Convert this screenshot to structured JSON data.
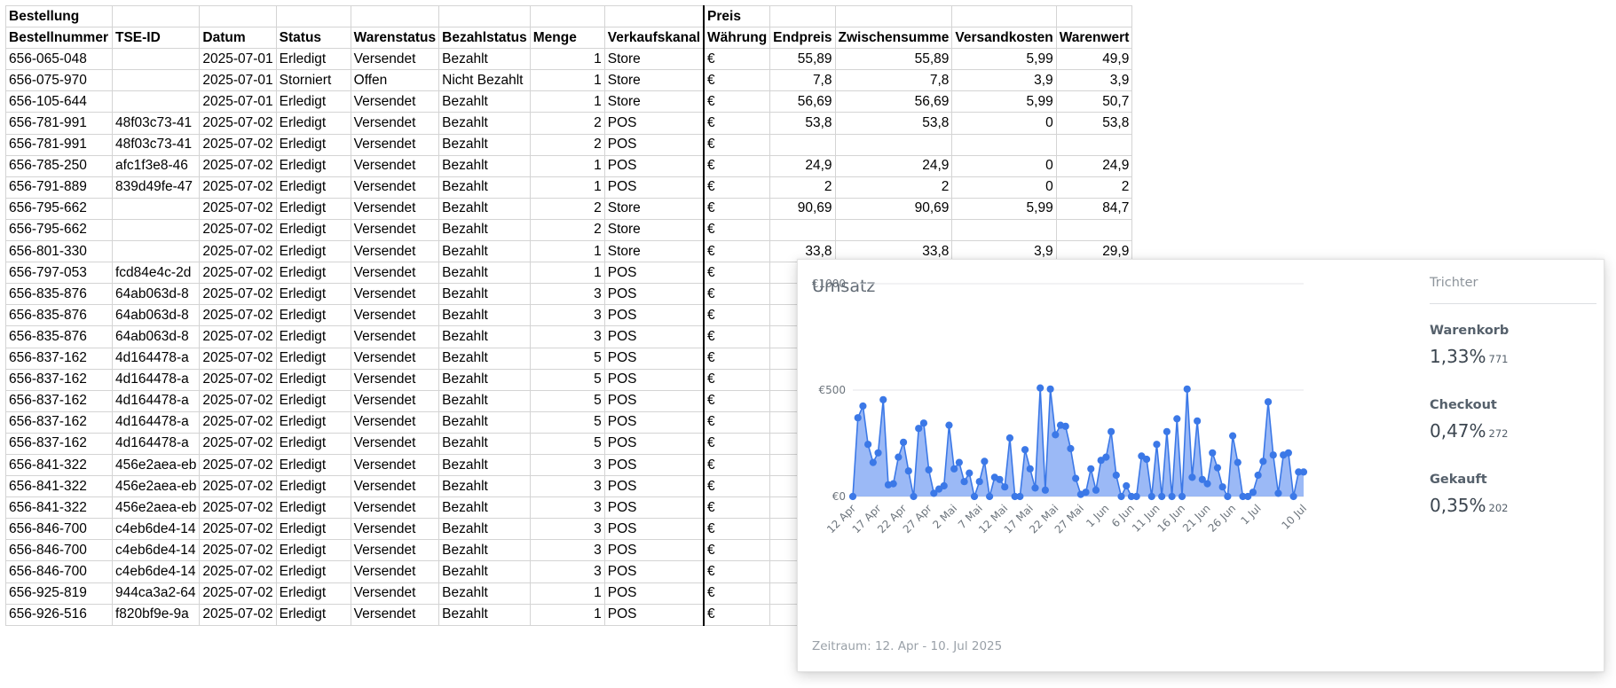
{
  "sheet": {
    "group_headers": {
      "order": "Bestellung",
      "price": "Preis"
    },
    "columns": [
      "Bestellnummer",
      "TSE-ID",
      "Datum",
      "Status",
      "Warenstatus",
      "Bezahlstatus",
      "Menge",
      "Verkaufskanal",
      "Währung",
      "Endpreis",
      "Zwischensumme",
      "Versandkosten",
      "Warenwert"
    ],
    "rows": [
      [
        "656-065-048",
        "",
        "2025-07-01",
        "Erledigt",
        "Versendet",
        "Bezahlt",
        "1",
        "Store",
        "€",
        "55,89",
        "55,89",
        "5,99",
        "49,9"
      ],
      [
        "656-075-970",
        "",
        "2025-07-01",
        "Storniert",
        "Offen",
        "Nicht Bezahlt",
        "1",
        "Store",
        "€",
        "7,8",
        "7,8",
        "3,9",
        "3,9"
      ],
      [
        "656-105-644",
        "",
        "2025-07-01",
        "Erledigt",
        "Versendet",
        "Bezahlt",
        "1",
        "Store",
        "€",
        "56,69",
        "56,69",
        "5,99",
        "50,7"
      ],
      [
        "656-781-991",
        "48f03c73-41",
        "2025-07-02",
        "Erledigt",
        "Versendet",
        "Bezahlt",
        "2",
        "POS",
        "€",
        "53,8",
        "53,8",
        "0",
        "53,8"
      ],
      [
        "656-781-991",
        "48f03c73-41",
        "2025-07-02",
        "Erledigt",
        "Versendet",
        "Bezahlt",
        "2",
        "POS",
        "€",
        "",
        "",
        "",
        ""
      ],
      [
        "656-785-250",
        "afc1f3e8-46",
        "2025-07-02",
        "Erledigt",
        "Versendet",
        "Bezahlt",
        "1",
        "POS",
        "€",
        "24,9",
        "24,9",
        "0",
        "24,9"
      ],
      [
        "656-791-889",
        "839d49fe-47",
        "2025-07-02",
        "Erledigt",
        "Versendet",
        "Bezahlt",
        "1",
        "POS",
        "€",
        "2",
        "2",
        "0",
        "2"
      ],
      [
        "656-795-662",
        "",
        "2025-07-02",
        "Erledigt",
        "Versendet",
        "Bezahlt",
        "2",
        "Store",
        "€",
        "90,69",
        "90,69",
        "5,99",
        "84,7"
      ],
      [
        "656-795-662",
        "",
        "2025-07-02",
        "Erledigt",
        "Versendet",
        "Bezahlt",
        "2",
        "Store",
        "€",
        "",
        "",
        "",
        ""
      ],
      [
        "656-801-330",
        "",
        "2025-07-02",
        "Erledigt",
        "Versendet",
        "Bezahlt",
        "1",
        "Store",
        "€",
        "33,8",
        "33,8",
        "3,9",
        "29,9"
      ],
      [
        "656-797-053",
        "fcd84e4c-2d",
        "2025-07-02",
        "Erledigt",
        "Versendet",
        "Bezahlt",
        "1",
        "POS",
        "€",
        "",
        "",
        "",
        ""
      ],
      [
        "656-835-876",
        "64ab063d-8",
        "2025-07-02",
        "Erledigt",
        "Versendet",
        "Bezahlt",
        "3",
        "POS",
        "€",
        "",
        "",
        "",
        ""
      ],
      [
        "656-835-876",
        "64ab063d-8",
        "2025-07-02",
        "Erledigt",
        "Versendet",
        "Bezahlt",
        "3",
        "POS",
        "€",
        "",
        "",
        "",
        ""
      ],
      [
        "656-835-876",
        "64ab063d-8",
        "2025-07-02",
        "Erledigt",
        "Versendet",
        "Bezahlt",
        "3",
        "POS",
        "€",
        "",
        "",
        "",
        ""
      ],
      [
        "656-837-162",
        "4d164478-a",
        "2025-07-02",
        "Erledigt",
        "Versendet",
        "Bezahlt",
        "5",
        "POS",
        "€",
        "",
        "",
        "",
        ""
      ],
      [
        "656-837-162",
        "4d164478-a",
        "2025-07-02",
        "Erledigt",
        "Versendet",
        "Bezahlt",
        "5",
        "POS",
        "€",
        "",
        "",
        "",
        ""
      ],
      [
        "656-837-162",
        "4d164478-a",
        "2025-07-02",
        "Erledigt",
        "Versendet",
        "Bezahlt",
        "5",
        "POS",
        "€",
        "",
        "",
        "",
        ""
      ],
      [
        "656-837-162",
        "4d164478-a",
        "2025-07-02",
        "Erledigt",
        "Versendet",
        "Bezahlt",
        "5",
        "POS",
        "€",
        "",
        "",
        "",
        ""
      ],
      [
        "656-837-162",
        "4d164478-a",
        "2025-07-02",
        "Erledigt",
        "Versendet",
        "Bezahlt",
        "5",
        "POS",
        "€",
        "",
        "",
        "",
        ""
      ],
      [
        "656-841-322",
        "456e2aea-eb",
        "2025-07-02",
        "Erledigt",
        "Versendet",
        "Bezahlt",
        "3",
        "POS",
        "€",
        "",
        "",
        "",
        ""
      ],
      [
        "656-841-322",
        "456e2aea-eb",
        "2025-07-02",
        "Erledigt",
        "Versendet",
        "Bezahlt",
        "3",
        "POS",
        "€",
        "",
        "",
        "",
        ""
      ],
      [
        "656-841-322",
        "456e2aea-eb",
        "2025-07-02",
        "Erledigt",
        "Versendet",
        "Bezahlt",
        "3",
        "POS",
        "€",
        "",
        "",
        "",
        ""
      ],
      [
        "656-846-700",
        "c4eb6de4-14",
        "2025-07-02",
        "Erledigt",
        "Versendet",
        "Bezahlt",
        "3",
        "POS",
        "€",
        "",
        "",
        "",
        ""
      ],
      [
        "656-846-700",
        "c4eb6de4-14",
        "2025-07-02",
        "Erledigt",
        "Versendet",
        "Bezahlt",
        "3",
        "POS",
        "€",
        "",
        "",
        "",
        ""
      ],
      [
        "656-846-700",
        "c4eb6de4-14",
        "2025-07-02",
        "Erledigt",
        "Versendet",
        "Bezahlt",
        "3",
        "POS",
        "€",
        "",
        "",
        "",
        ""
      ],
      [
        "656-925-819",
        "944ca3a2-64",
        "2025-07-02",
        "Erledigt",
        "Versendet",
        "Bezahlt",
        "1",
        "POS",
        "€",
        "",
        "",
        "",
        ""
      ],
      [
        "656-926-516",
        "f820bf9e-9a",
        "2025-07-02",
        "Erledigt",
        "Versendet",
        "Bezahlt",
        "1",
        "POS",
        "€",
        "",
        "",
        "",
        ""
      ]
    ]
  },
  "chart_card": {
    "title": "Umsatz",
    "period": "Zeitraum: 12. Apr - 10. Jul 2025",
    "funnel": {
      "title": "Trichter",
      "items": [
        {
          "label": "Warenkorb",
          "percent": "1,33%",
          "count": "771"
        },
        {
          "label": "Checkout",
          "percent": "0,47%",
          "count": "272"
        },
        {
          "label": "Gekauft",
          "percent": "0,35%",
          "count": "202"
        }
      ]
    }
  },
  "chart_data": {
    "type": "area",
    "title": "Umsatz",
    "xlabel": "",
    "ylabel": "",
    "ylim": [
      0,
      1000
    ],
    "y_ticks": [
      {
        "value": 0,
        "label": "€0"
      },
      {
        "value": 500,
        "label": "€500"
      },
      {
        "value": 1000,
        "label": "€1000"
      }
    ],
    "x_tick_labels": [
      {
        "index": 0,
        "label": "12 Apr"
      },
      {
        "index": 5,
        "label": "17 Apr"
      },
      {
        "index": 10,
        "label": "22 Apr"
      },
      {
        "index": 15,
        "label": "27 Apr"
      },
      {
        "index": 20,
        "label": "2 Mai"
      },
      {
        "index": 25,
        "label": "7 Mai"
      },
      {
        "index": 30,
        "label": "12 Mai"
      },
      {
        "index": 35,
        "label": "17 Mai"
      },
      {
        "index": 40,
        "label": "22 Mai"
      },
      {
        "index": 45,
        "label": "27 Mai"
      },
      {
        "index": 50,
        "label": "1 Jun"
      },
      {
        "index": 55,
        "label": "6 Jun"
      },
      {
        "index": 60,
        "label": "11 Jun"
      },
      {
        "index": 65,
        "label": "16 Jun"
      },
      {
        "index": 70,
        "label": "21 Jun"
      },
      {
        "index": 75,
        "label": "26 Jun"
      },
      {
        "index": 80,
        "label": "1 Jul"
      },
      {
        "index": 89,
        "label": "10 Jul"
      }
    ],
    "series": [
      {
        "name": "Umsatz",
        "color": "#3b78e7",
        "fill": "#8aadf5",
        "values": [
          0,
          370,
          425,
          245,
          160,
          205,
          455,
          55,
          60,
          185,
          255,
          120,
          0,
          320,
          345,
          125,
          15,
          35,
          50,
          335,
          130,
          160,
          70,
          110,
          0,
          70,
          165,
          0,
          90,
          80,
          45,
          275,
          0,
          0,
          220,
          130,
          40,
          510,
          30,
          505,
          290,
          335,
          330,
          225,
          85,
          10,
          20,
          130,
          30,
          170,
          185,
          305,
          100,
          0,
          50,
          0,
          0,
          190,
          175,
          0,
          245,
          0,
          305,
          0,
          365,
          0,
          505,
          90,
          355,
          80,
          60,
          205,
          135,
          45,
          0,
          285,
          160,
          0,
          0,
          20,
          100,
          165,
          445,
          195,
          15,
          195,
          205,
          0,
          115,
          115
        ]
      }
    ]
  }
}
